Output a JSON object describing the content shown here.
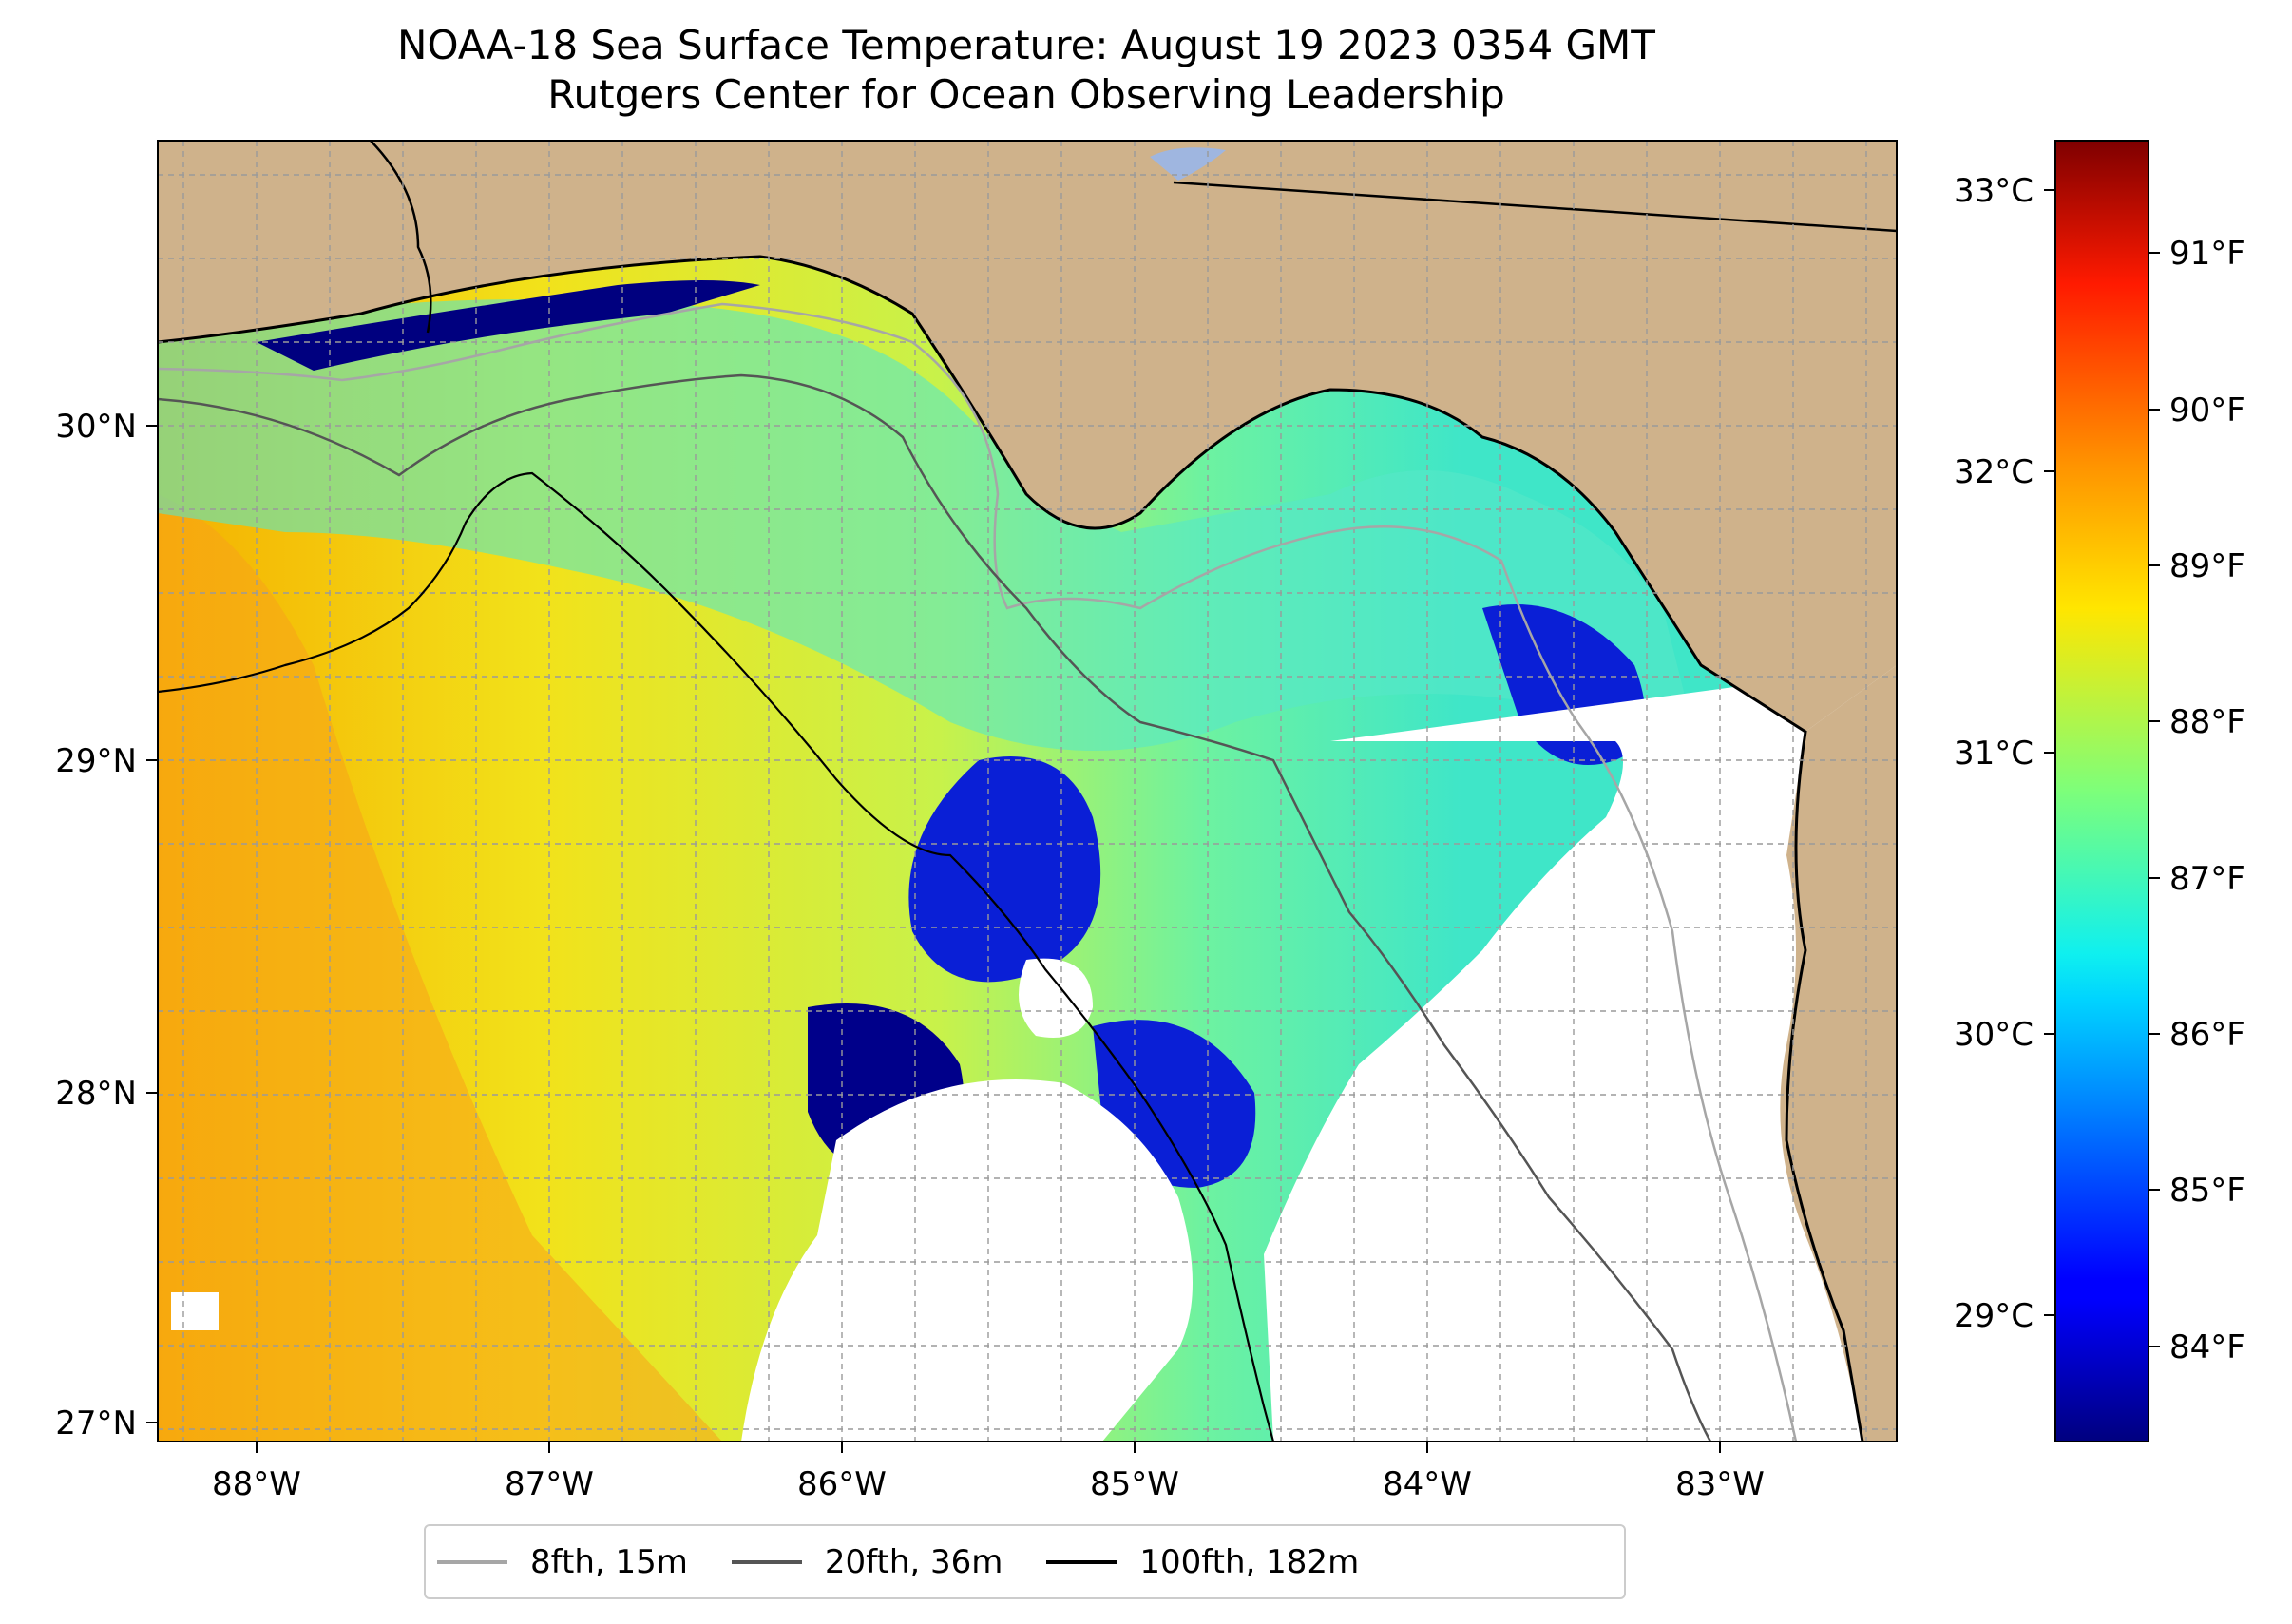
{
  "title": {
    "line1": "NOAA-18 Sea Surface Temperature: August 19 2023 0354 GMT",
    "line2": "Rutgers Center for Ocean Observing Leadership"
  },
  "map": {
    "lon_ticks": [
      "88°W",
      "87°W",
      "86°W",
      "85°W",
      "84°W",
      "83°W"
    ],
    "lat_ticks": [
      "30°N",
      "29°N",
      "28°N",
      "27°N"
    ],
    "land_color": "#cfb28b",
    "cloud_color": "#ffffff",
    "grid": true,
    "grid_style": "dashed"
  },
  "colorbar": {
    "colormap": "jet",
    "celsius_ticks": [
      "33°C",
      "32°C",
      "31°C",
      "30°C",
      "29°C"
    ],
    "fahrenheit_ticks": [
      "91°F",
      "90°F",
      "89°F",
      "88°F",
      "87°F",
      "86°F",
      "85°F",
      "84°F"
    ],
    "range_fahrenheit": [
      83.4,
      91.7
    ]
  },
  "legend": {
    "items": [
      {
        "label": "8fth, 15m",
        "color": "#a6a6a6"
      },
      {
        "label": "20fth, 36m",
        "color": "#555555"
      },
      {
        "label": "100fth, 182m",
        "color": "#000000"
      }
    ]
  }
}
